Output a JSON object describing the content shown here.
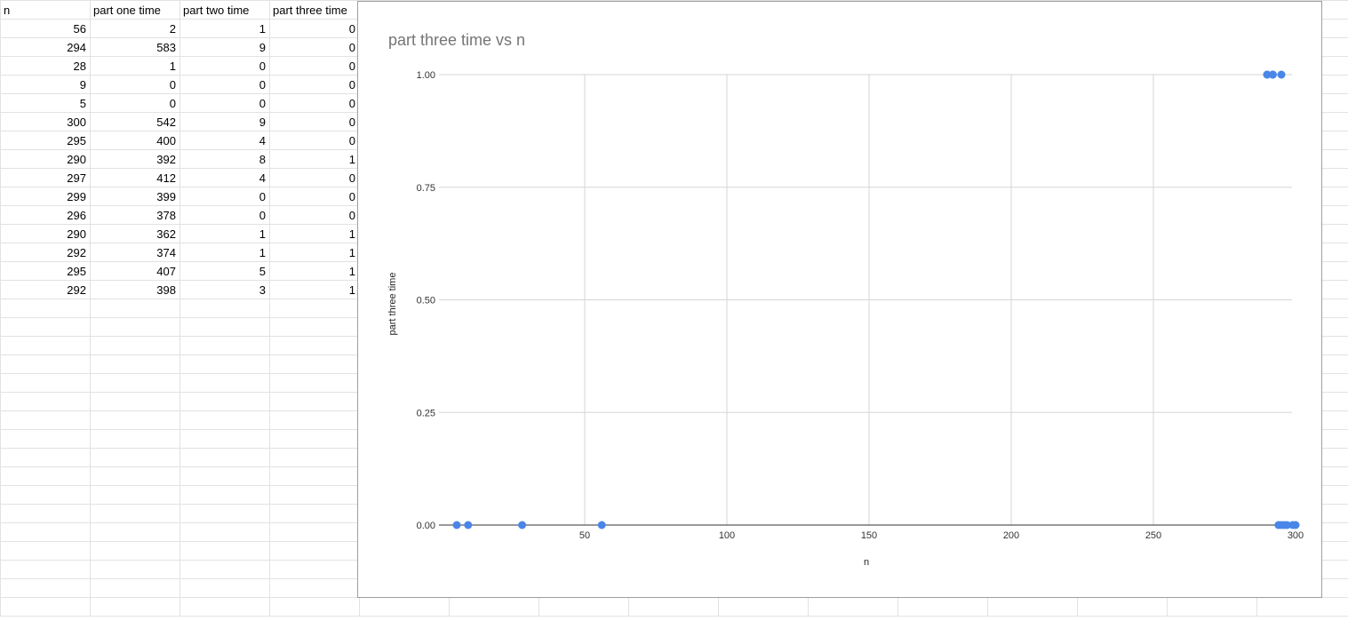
{
  "sheet": {
    "headers": [
      "n",
      "part one time",
      "part two time",
      "part three time"
    ],
    "rows": [
      [
        56,
        2,
        1,
        0
      ],
      [
        294,
        583,
        9,
        0
      ],
      [
        28,
        1,
        0,
        0
      ],
      [
        9,
        0,
        0,
        0
      ],
      [
        5,
        0,
        0,
        0
      ],
      [
        300,
        542,
        9,
        0
      ],
      [
        295,
        400,
        4,
        0
      ],
      [
        290,
        392,
        8,
        1
      ],
      [
        297,
        412,
        4,
        0
      ],
      [
        299,
        399,
        0,
        0
      ],
      [
        296,
        378,
        0,
        0
      ],
      [
        290,
        362,
        1,
        1
      ],
      [
        292,
        374,
        1,
        1
      ],
      [
        295,
        407,
        5,
        1
      ],
      [
        292,
        398,
        3,
        1
      ]
    ]
  },
  "chart_data": {
    "type": "scatter",
    "title": "part three time vs n",
    "xlabel": "n",
    "ylabel": "part three time",
    "xlim": [
      0,
      300
    ],
    "ylim": [
      0,
      1
    ],
    "xticks": [
      50,
      100,
      150,
      200,
      250,
      300
    ],
    "yticks": [
      "0.00",
      "0.25",
      "0.50",
      "0.75",
      "1.00"
    ],
    "grid": true,
    "legend": "none",
    "point_color": "#4a86e8",
    "points": [
      {
        "x": 56,
        "y": 0
      },
      {
        "x": 294,
        "y": 0
      },
      {
        "x": 28,
        "y": 0
      },
      {
        "x": 9,
        "y": 0
      },
      {
        "x": 5,
        "y": 0
      },
      {
        "x": 300,
        "y": 0
      },
      {
        "x": 295,
        "y": 0
      },
      {
        "x": 290,
        "y": 1
      },
      {
        "x": 297,
        "y": 0
      },
      {
        "x": 299,
        "y": 0
      },
      {
        "x": 296,
        "y": 0
      },
      {
        "x": 290,
        "y": 1
      },
      {
        "x": 292,
        "y": 1
      },
      {
        "x": 295,
        "y": 1
      },
      {
        "x": 292,
        "y": 1
      }
    ]
  }
}
